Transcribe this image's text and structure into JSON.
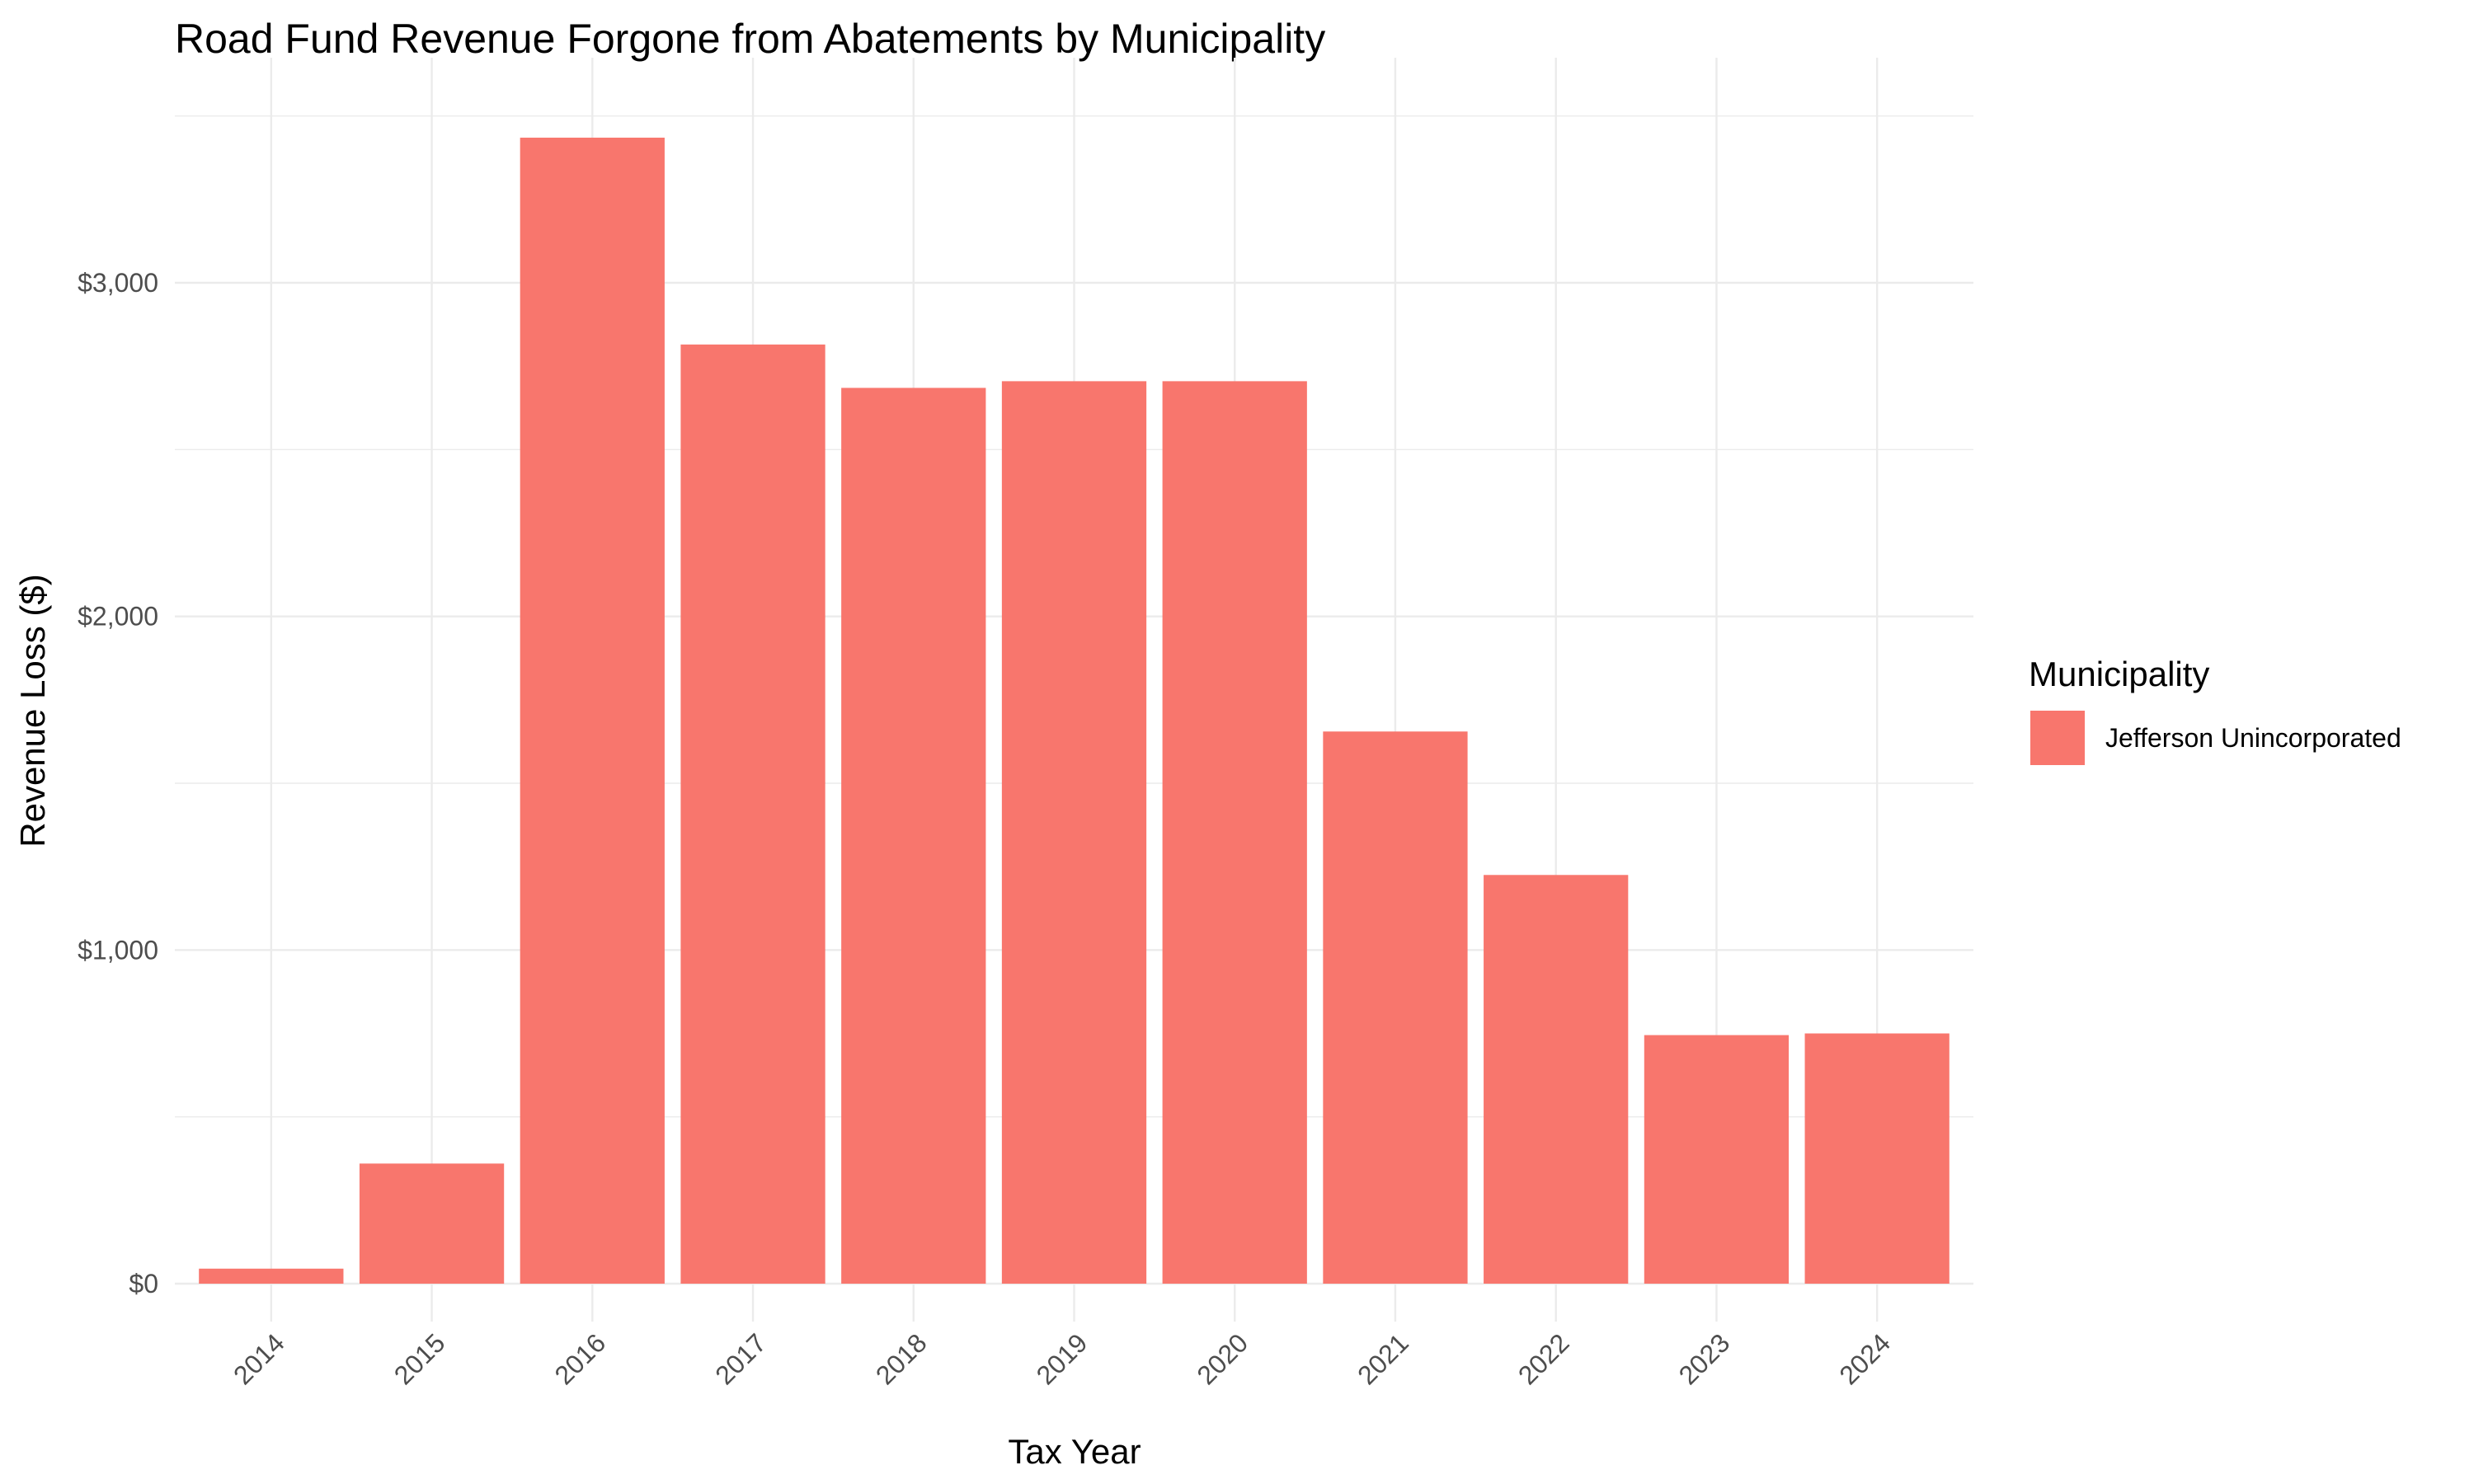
{
  "chart_data": {
    "type": "bar",
    "title": "Road Fund Revenue Forgone from Abatements by Municipality",
    "xlabel": "Tax Year",
    "ylabel": "Revenue Loss ($)",
    "categories": [
      "2014",
      "2015",
      "2016",
      "2017",
      "2018",
      "2019",
      "2020",
      "2021",
      "2022",
      "2023",
      "2024"
    ],
    "series": [
      {
        "name": "Jefferson Unincorporated",
        "color": "#f8766d",
        "values": [
          45,
          360,
          3435,
          2815,
          2685,
          2705,
          2705,
          1655,
          1225,
          745,
          750
        ]
      }
    ],
    "ylim": [
      0,
      3500
    ],
    "y_ticks": [
      0,
      1000,
      2000,
      3000
    ],
    "y_tick_labels": [
      "$0",
      "$1,000",
      "$2,000",
      "$3,000"
    ],
    "legend": {
      "title": "Municipality",
      "position": "right"
    },
    "grid": true
  }
}
